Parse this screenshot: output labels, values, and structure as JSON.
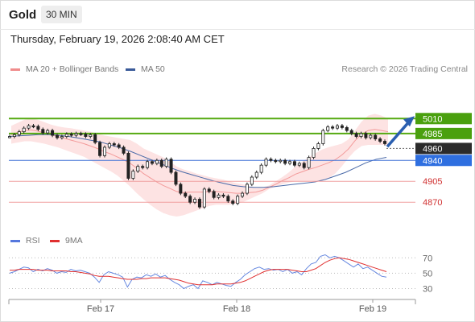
{
  "header": {
    "symbol": "Gold",
    "timeframe": "30 MIN"
  },
  "timestamp": "Thursday, February 19, 2026 2:08:40 AM CET",
  "legend": {
    "bb": {
      "label": "MA 20 + Bollinger Bands",
      "color": "#f08c8c"
    },
    "ma50": {
      "label": "MA 50",
      "color": "#3a5a99"
    }
  },
  "credit": "Research © 2026 Trading Central",
  "rsi_legend": {
    "rsi": {
      "label": "RSI",
      "color": "#5577dd"
    },
    "ma9": {
      "label": "9MA",
      "color": "#e03030"
    }
  },
  "chart_data": [
    {
      "type": "line",
      "x_ticks": [
        "Feb 17",
        "Feb 18",
        "Feb 19"
      ],
      "ylim": [
        4842,
        5036
      ],
      "price_path": [
        4980,
        4983,
        4988,
        4994,
        4998,
        4997,
        4992,
        4986,
        4990,
        4982,
        4978,
        4980,
        4984,
        4982,
        4985,
        4984,
        4980,
        4983,
        4970,
        4948,
        4962,
        4968,
        4966,
        4962,
        4952,
        4910,
        4922,
        4930,
        4928,
        4938,
        4935,
        4940,
        4930,
        4942,
        4920,
        4900,
        4885,
        4880,
        4870,
        4875,
        4862,
        4892,
        4888,
        4878,
        4882,
        4880,
        4872,
        4868,
        4880,
        4885,
        4900,
        4912,
        4920,
        4932,
        4942,
        4940,
        4938,
        4940,
        4935,
        4938,
        4932,
        4935,
        4928,
        4945,
        4960,
        4968,
        4990,
        4996,
        4994,
        4998,
        4995,
        4990,
        4985,
        4980,
        4985,
        4978,
        4982,
        4976,
        4972,
        4968
      ],
      "bb_upper": [
        4998,
        5003,
        5008,
        5010,
        5008,
        5004,
        5000,
        4997,
        4995,
        4994,
        4992,
        4990,
        4988,
        4985,
        4982,
        4980,
        4978,
        4976,
        4974,
        4968,
        4960,
        4955,
        4950,
        4945,
        4938,
        4930,
        4925,
        4922,
        4918,
        4915,
        4912,
        4910,
        4908,
        4905,
        4902,
        4900,
        4897,
        4894,
        4895,
        4898,
        4905,
        4912,
        4920,
        4930,
        4938,
        4945,
        4952,
        4958,
        4962,
        4965,
        4968,
        4975,
        4990,
        5005,
        5015,
        5018,
        5015,
        5010
      ],
      "bb_lower": [
        4968,
        4970,
        4972,
        4972,
        4970,
        4968,
        4965,
        4962,
        4958,
        4954,
        4950,
        4946,
        4940,
        4934,
        4928,
        4922,
        4915,
        4906,
        4896,
        4885,
        4875,
        4866,
        4858,
        4852,
        4848,
        4846,
        4848,
        4852,
        4856,
        4860,
        4864,
        4866,
        4866,
        4866,
        4868,
        4870,
        4875,
        4880,
        4885,
        4892,
        4896,
        4900,
        4903,
        4905,
        4905,
        4905,
        4905,
        4906,
        4910,
        4918,
        4930,
        4944,
        4956,
        4964,
        4966,
        4966,
        4966,
        4966
      ],
      "ma20": [
        4983,
        4987,
        4990,
        4991,
        4989,
        4986,
        4983,
        4980,
        4977,
        4974,
        4971,
        4968,
        4964,
        4960,
        4955,
        4951,
        4946,
        4941,
        4935,
        4927,
        4918,
        4911,
        4904,
        4898,
        4893,
        4888,
        4886,
        4887,
        4887,
        4887,
        4888,
        4888,
        4887,
        4886,
        4885,
        4885,
        4886,
        4887,
        4890,
        4895,
        4900,
        4906,
        4911,
        4917,
        4921,
        4925,
        4928,
        4932,
        4936,
        4941,
        4949,
        4959,
        4973,
        4984,
        4990,
        4992,
        4990,
        4988
      ],
      "ma50": [
        4980,
        4981,
        4982,
        4983,
        4983,
        4982,
        4980,
        4977,
        4974,
        4971,
        4966,
        4961,
        4955,
        4948,
        4941,
        4934,
        4927,
        4921,
        4916,
        4911,
        4906,
        4902,
        4898,
        4896,
        4895,
        4895,
        4896,
        4898,
        4900,
        4902,
        4904,
        4908,
        4914,
        4920,
        4928,
        4936,
        4942,
        4945
      ],
      "levels": [
        {
          "value": 5010,
          "label": "5010",
          "kind": "resistance"
        },
        {
          "value": 4985,
          "label": "4985",
          "kind": "resistance"
        },
        {
          "value": 4960,
          "label": "4960",
          "kind": "last-price"
        },
        {
          "value": 4940,
          "label": "4940",
          "kind": "pivot"
        },
        {
          "value": 4905,
          "label": "4905",
          "kind": "support"
        },
        {
          "value": 4870,
          "label": "4870",
          "kind": "support"
        }
      ],
      "projection": {
        "from": 4963,
        "to": 5010,
        "direction": "up"
      }
    },
    {
      "type": "line",
      "ylim": [
        20,
        85
      ],
      "y_ticks": [
        70,
        50,
        30
      ],
      "rsi": [
        50,
        52,
        55,
        58,
        57,
        52,
        55,
        53,
        56,
        54,
        50,
        52,
        51,
        55,
        53,
        54,
        52,
        50,
        45,
        38,
        48,
        52,
        50,
        48,
        45,
        32,
        42,
        45,
        44,
        48,
        46,
        49,
        45,
        47,
        42,
        38,
        35,
        30,
        33,
        35,
        30,
        40,
        38,
        35,
        38,
        36,
        34,
        33,
        38,
        42,
        48,
        52,
        56,
        58,
        55,
        56,
        54,
        55,
        52,
        55,
        50,
        52,
        48,
        56,
        62,
        64,
        72,
        74,
        70,
        72,
        70,
        66,
        62,
        58,
        62,
        56,
        58,
        54,
        50,
        46,
        45
      ],
      "ma9": [
        54,
        54,
        55,
        55,
        55,
        55,
        54,
        54,
        54,
        53,
        53,
        53,
        53,
        52,
        52,
        51,
        50,
        49,
        47,
        46,
        46,
        46,
        45,
        44,
        43,
        42,
        42,
        42,
        43,
        43,
        44,
        44,
        44,
        44,
        43,
        42,
        41,
        39,
        37,
        36,
        35,
        35,
        35,
        35,
        36,
        36,
        36,
        36,
        37,
        38,
        40,
        43,
        46,
        49,
        52,
        54,
        55,
        55,
        55,
        55,
        54,
        53,
        52,
        52,
        54,
        56,
        60,
        64,
        67,
        69,
        70,
        69,
        68,
        66,
        64,
        62,
        60,
        58,
        56,
        54,
        52
      ]
    }
  ]
}
